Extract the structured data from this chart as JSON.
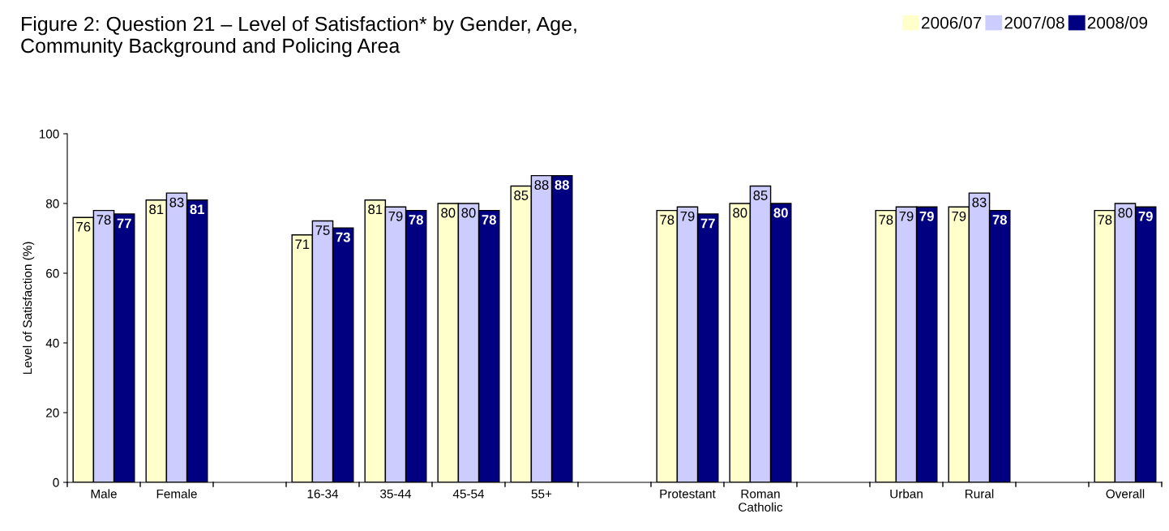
{
  "chart_data": {
    "type": "bar",
    "title": "Figure 2: Question 21 – Level of Satisfaction* by Gender, Age,\nCommunity Background and Policing Area",
    "ylabel": "Level of Satisfaction (%)",
    "categories": [
      "Male",
      "Female",
      null,
      "16-34",
      "35-44",
      "45-54",
      "55+",
      null,
      "Protestant",
      "Roman\nCatholic",
      null,
      "Urban",
      "Rural",
      null,
      "Overall"
    ],
    "series": [
      {
        "name": "2006/07",
        "color": "#ffffcc",
        "values": [
          76,
          81,
          null,
          71,
          81,
          80,
          85,
          null,
          78,
          80,
          null,
          78,
          79,
          null,
          78
        ]
      },
      {
        "name": "2007/08",
        "color": "#ccccff",
        "values": [
          78,
          83,
          null,
          75,
          79,
          80,
          88,
          null,
          79,
          85,
          null,
          79,
          83,
          null,
          80
        ]
      },
      {
        "name": "2008/09",
        "color": "#000080",
        "values": [
          77,
          81,
          null,
          73,
          78,
          78,
          88,
          null,
          77,
          80,
          null,
          79,
          78,
          null,
          79
        ]
      }
    ],
    "ylim": [
      0,
      100
    ],
    "yticks": [
      0,
      20,
      40,
      60,
      80,
      100
    ],
    "grid": false,
    "legend": "top right",
    "data_labels": true
  }
}
